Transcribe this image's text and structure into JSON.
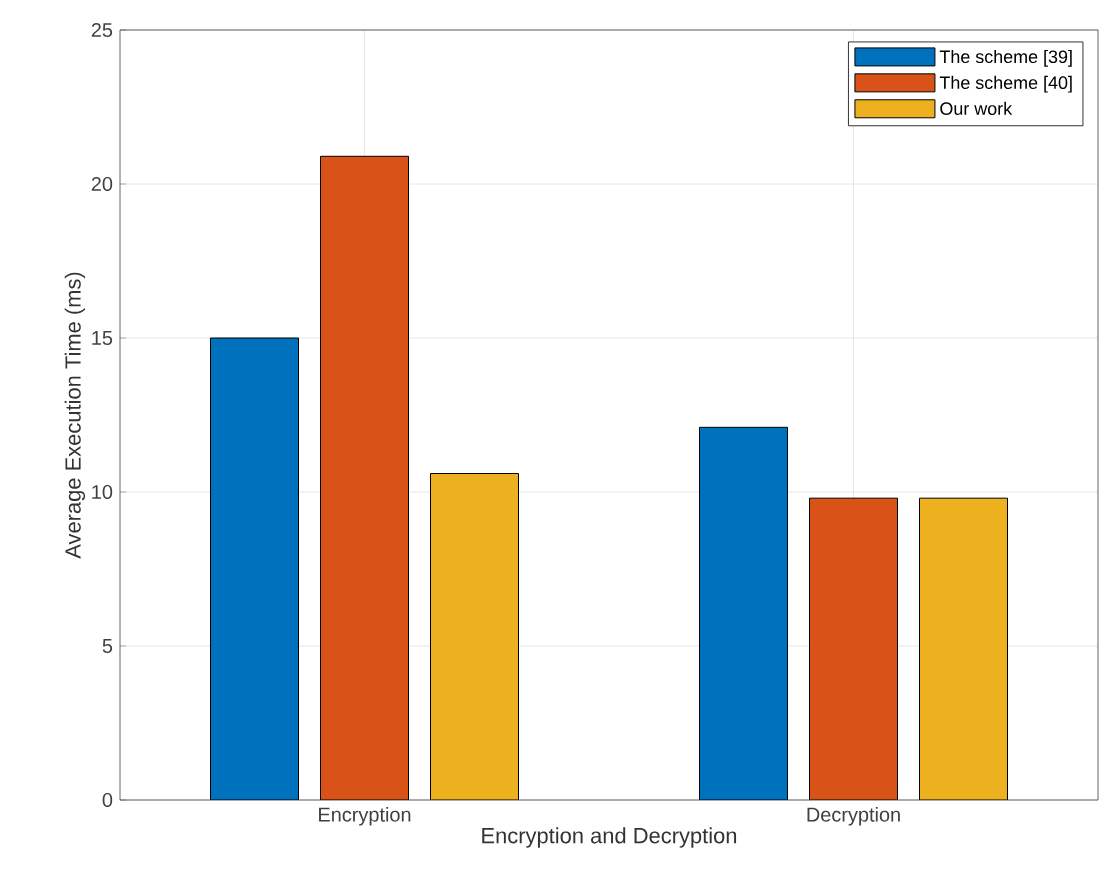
{
  "chart_data": {
    "type": "bar",
    "xlabel": "Encryption and Decryption",
    "ylabel": "Average Execution Time (ms)",
    "categories": [
      "Encryption",
      "Decryption"
    ],
    "series": [
      {
        "name": "The scheme [39]",
        "color": "#0072bd",
        "values": [
          15.0,
          12.1
        ]
      },
      {
        "name": "The scheme [40]",
        "color": "#d95319",
        "values": [
          20.9,
          9.8
        ]
      },
      {
        "name": "Our work",
        "color": "#edb120",
        "values": [
          10.6,
          9.8
        ]
      }
    ],
    "ylim": [
      0,
      25
    ],
    "yticks": [
      0,
      5,
      10,
      15,
      20,
      25
    ],
    "grid": true,
    "legend": "top right"
  }
}
